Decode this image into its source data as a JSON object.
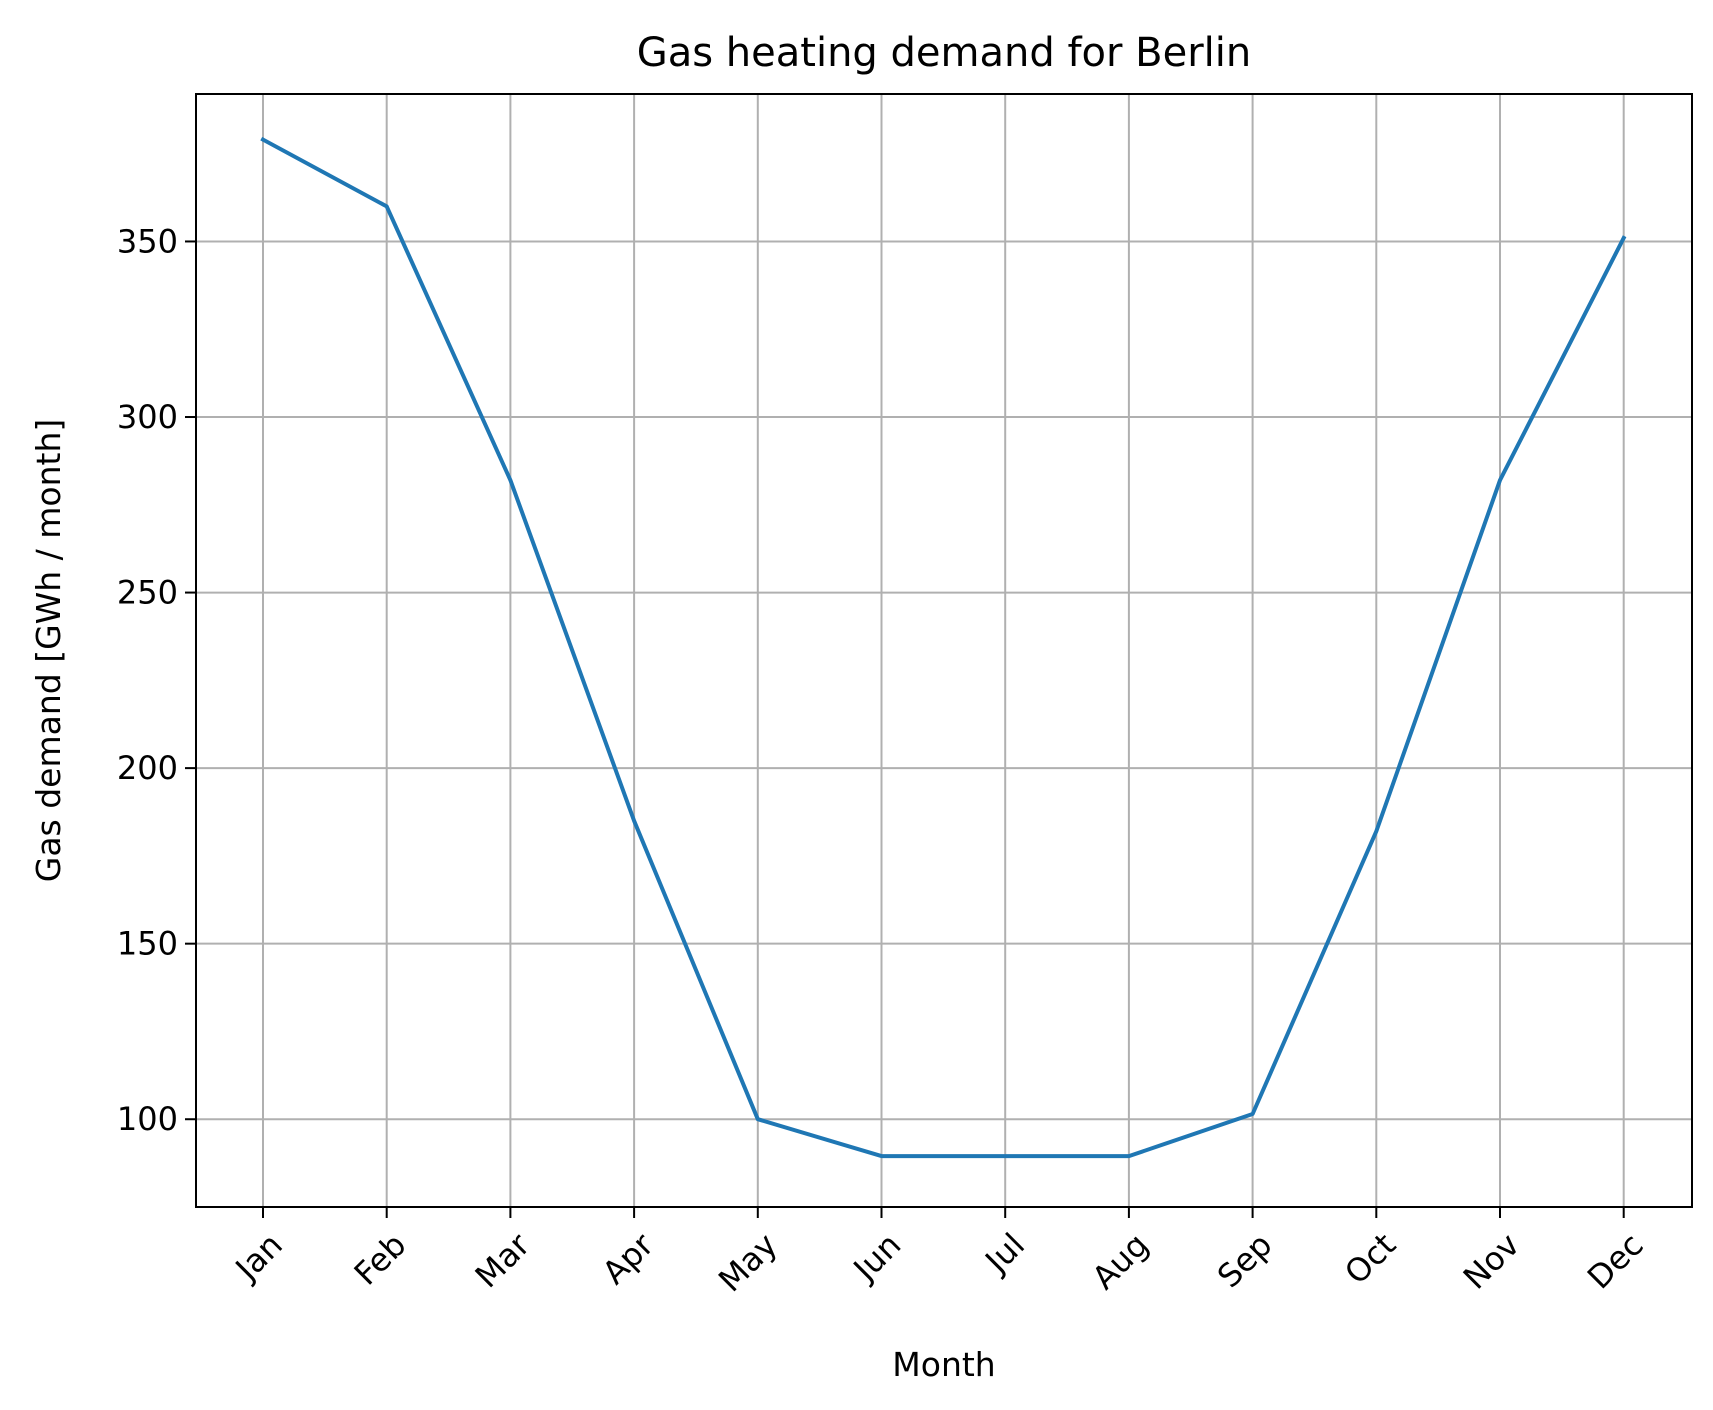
{
  "chart_data": {
    "type": "line",
    "title": "Gas heating demand for Berlin",
    "xlabel": "Month",
    "ylabel": "Gas demand [GWh / month]",
    "categories": [
      "Jan",
      "Feb",
      "Mar",
      "Apr",
      "May",
      "Jun",
      "Jul",
      "Aug",
      "Sep",
      "Oct",
      "Nov",
      "Dec"
    ],
    "series": [
      {
        "values": [
          379,
          360,
          282,
          185,
          100,
          89.5,
          89.5,
          89.5,
          101.5,
          182,
          282,
          351
        ],
        "color": "#1f77b4"
      }
    ],
    "ylim": [
      75,
      392
    ],
    "yticks": [
      100,
      150,
      200,
      250,
      300,
      350
    ],
    "grid": true,
    "legend": "none"
  }
}
